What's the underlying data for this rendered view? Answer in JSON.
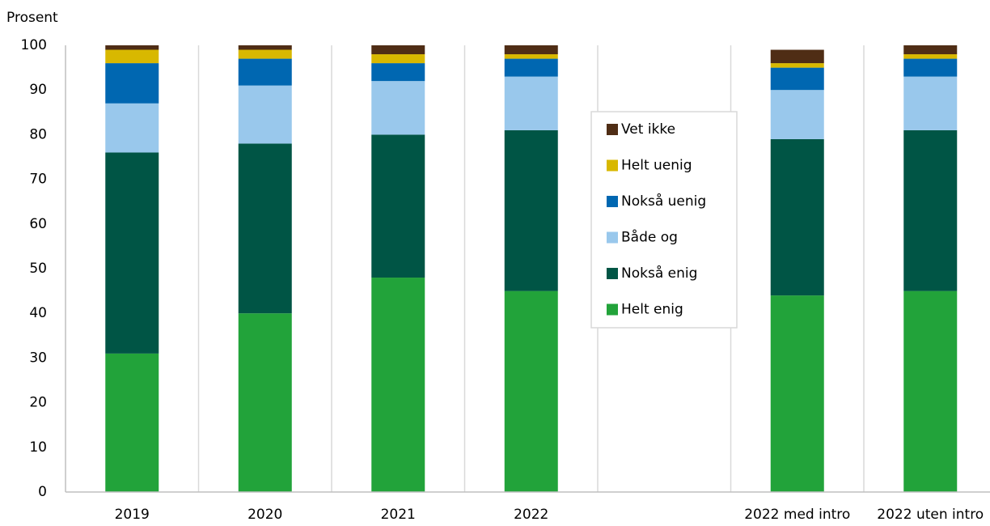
{
  "chart_data": {
    "type": "stacked_bar",
    "y_label": "Prosent",
    "categories": [
      "2019",
      "2020",
      "2021",
      "2022",
      null,
      "2022 med intro",
      "2022 uten intro"
    ],
    "series": [
      {
        "name": "Helt enig",
        "color": "#22a33a",
        "values": [
          31,
          40,
          48,
          45,
          null,
          44,
          45
        ]
      },
      {
        "name": "Nokså enig",
        "color": "#005545",
        "values": [
          45,
          38,
          32,
          36,
          null,
          35,
          36
        ]
      },
      {
        "name": "Både og",
        "color": "#99c8ec",
        "values": [
          11,
          13,
          12,
          12,
          null,
          11,
          12
        ]
      },
      {
        "name": "Nokså uenig",
        "color": "#0067b1",
        "values": [
          9,
          6,
          4,
          4,
          null,
          5,
          4
        ]
      },
      {
        "name": "Helt uenig",
        "color": "#d8b800",
        "values": [
          3,
          2,
          2,
          1,
          null,
          1,
          1
        ]
      },
      {
        "name": "Vet ikke",
        "color": "#4f2d15",
        "values": [
          1,
          1,
          2,
          2,
          null,
          3,
          2
        ]
      }
    ],
    "ylim": [
      0,
      100
    ],
    "yticks": [
      0,
      10,
      20,
      30,
      40,
      50,
      60,
      70,
      80,
      90,
      100
    ],
    "grid": false,
    "category_separators": true,
    "legend": "center"
  }
}
